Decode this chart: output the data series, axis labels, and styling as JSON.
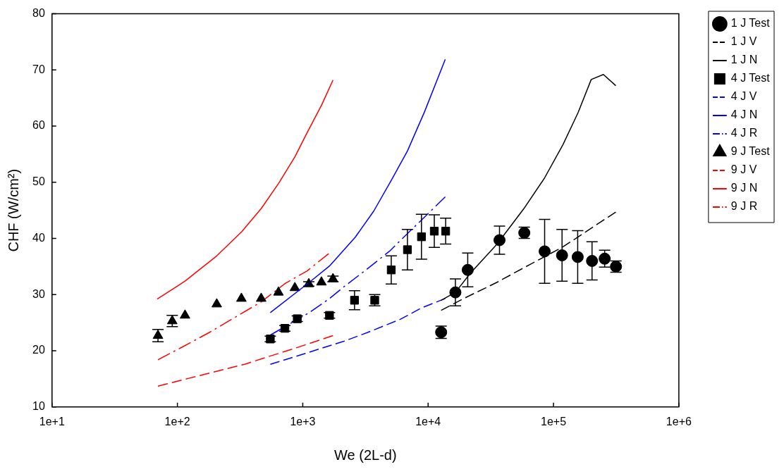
{
  "chart_data": {
    "type": "scatter",
    "xlabel": "We (2L-d)",
    "ylabel": "CHF (W/cm²)",
    "log": "x",
    "grid": false,
    "legend": "top right",
    "xlim": [
      10,
      1000000
    ],
    "xticks": [
      {
        "value": 10,
        "label": "1e+1"
      },
      {
        "value": 100,
        "label": "1e+2"
      },
      {
        "value": 1000,
        "label": "1e+3"
      },
      {
        "value": 10000,
        "label": "1e+4"
      },
      {
        "value": 100000,
        "label": "1e+5"
      },
      {
        "value": 1000000,
        "label": "1e+6"
      }
    ],
    "ylim": [
      10,
      80
    ],
    "yticks": [
      10,
      20,
      30,
      40,
      50,
      60,
      70,
      80
    ],
    "series": [
      {
        "name": "1 J Test",
        "type": "scatter",
        "marker": "circle",
        "color": "#000000",
        "x": [
          12700,
          16500,
          20700,
          37100,
          58500,
          85000,
          117000,
          156000,
          203000,
          256000,
          315000
        ],
        "values": [
          23.3,
          30.4,
          34.4,
          39.7,
          41.0,
          37.7,
          37.0,
          36.7,
          36.0,
          36.4,
          35.0
        ],
        "errors": [
          1.1,
          2.4,
          3,
          2.5,
          1,
          5.7,
          4.6,
          4.7,
          3.4,
          1.5,
          1
        ]
      },
      {
        "name": "1 J V",
        "type": "line",
        "line_style": "dashed",
        "color": "#000000",
        "x": [
          12700,
          18800,
          35500,
          64000,
          117000,
          314000
        ],
        "values": [
          27.2,
          29.2,
          32.2,
          35.3,
          38.4,
          44.7
        ]
      },
      {
        "name": "1 J N",
        "type": "line",
        "line_style": "solid",
        "color": "#000000",
        "x": [
          12700,
          16500,
          21700,
          35500,
          58000,
          84500,
          119000,
          157000,
          200000,
          250000,
          314000
        ],
        "values": [
          29.0,
          30.4,
          33.8,
          39.0,
          45.3,
          50.7,
          56.7,
          62.4,
          68.3,
          69.2,
          67.2
        ]
      },
      {
        "name": "4 J Test",
        "type": "scatter",
        "marker": "square",
        "color": "#000000",
        "x": [
          551,
          720,
          904,
          1634,
          2588,
          3750,
          5080,
          6840,
          8850,
          11200,
          13800
        ],
        "values": [
          22.1,
          24.0,
          25.7,
          26.3,
          29.0,
          29.0,
          34.4,
          38.0,
          40.3,
          41.3,
          41.3
        ],
        "errors": [
          0.5,
          0.5,
          0.5,
          0.5,
          1.7,
          1,
          2.5,
          3.6,
          4,
          2.9,
          2.3
        ]
      },
      {
        "name": "4 J V",
        "type": "line",
        "line_style": "dashed",
        "color": "#0000ff",
        "x": [
          551,
          880,
          2130,
          3320,
          5990,
          8990,
          13700
        ],
        "values": [
          17.6,
          19.0,
          21.7,
          23.3,
          25.6,
          27.7,
          29.3
        ]
      },
      {
        "name": "4 J N",
        "type": "line",
        "line_style": "solid",
        "color": "#0000ff",
        "x": [
          551,
          1130,
          1634,
          2617,
          3690,
          5070,
          6850,
          9380,
          13700
        ],
        "values": [
          26.8,
          32.2,
          35.1,
          40.2,
          44.9,
          50.3,
          55.6,
          62.6,
          71.9
        ]
      },
      {
        "name": "4 J R",
        "type": "line",
        "line_style": "dashdot",
        "color": "#0000ff",
        "x": [
          551,
          1130,
          1634,
          2130,
          3320,
          4900,
          7400,
          13700
        ],
        "values": [
          22.8,
          26.8,
          29.3,
          31.4,
          34.7,
          37.7,
          41.6,
          47.4
        ]
      },
      {
        "name": "9 J Test",
        "type": "scatter",
        "marker": "triangle",
        "color": "#000000",
        "x": [
          70,
          91,
          115,
          206,
          324,
          466,
          640,
          865,
          1117,
          1409,
          1742
        ],
        "values": [
          22.7,
          25.3,
          26.3,
          28.3,
          29.3,
          29.3,
          30.4,
          31.2,
          31.9,
          32.2,
          32.8
        ],
        "errors": [
          1.1,
          1,
          null,
          null,
          null,
          null,
          null,
          null,
          0.4,
          null,
          0.5
        ]
      },
      {
        "name": "9 J V",
        "type": "line",
        "line_style": "dashed",
        "color": "#ff0000",
        "x": [
          70,
          123,
          344,
          488,
          880,
          1742
        ],
        "values": [
          13.7,
          15.1,
          17.6,
          18.7,
          20.5,
          22.7
        ]
      },
      {
        "name": "9 J N",
        "type": "line",
        "line_style": "solid",
        "color": "#ff0000",
        "x": [
          69,
          115,
          206,
          326,
          469,
          646,
          869,
          1064,
          1409,
          1742
        ],
        "values": [
          29.2,
          32.4,
          36.9,
          41.2,
          45.4,
          49.9,
          54.6,
          58.5,
          63.7,
          68.2
        ]
      },
      {
        "name": "9 J R",
        "type": "line",
        "line_style": "dashdot",
        "color": "#ff0000",
        "x": [
          70,
          110,
          181,
          466,
          725,
          1080,
          1610
        ],
        "values": [
          18.4,
          20.7,
          23.3,
          28.7,
          32.0,
          34.2,
          37.3
        ]
      }
    ]
  }
}
